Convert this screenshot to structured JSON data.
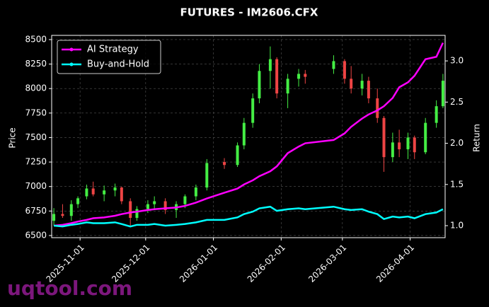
{
  "chart_data": {
    "type": "candlestick",
    "title": "FUTURES - IM2606.CFX",
    "ylabel": "Price",
    "y2label": "Return",
    "x": [
      "2025-10-20",
      "2025-10-24",
      "2025-10-28",
      "2025-10-31",
      "2025-11-04",
      "2025-11-07",
      "2025-11-12",
      "2025-11-17",
      "2025-11-20",
      "2025-11-24",
      "2025-11-27",
      "2025-12-02",
      "2025-12-05",
      "2025-12-10",
      "2025-12-15",
      "2025-12-19",
      "2025-12-24",
      "2025-12-29",
      "2026-01-06",
      "2026-01-12",
      "2026-01-15",
      "2026-01-19",
      "2026-01-22",
      "2026-01-27",
      "2026-01-30",
      "2026-02-04",
      "2026-02-09",
      "2026-02-12",
      "2026-02-25",
      "2026-03-02",
      "2026-03-05",
      "2026-03-10",
      "2026-03-13",
      "2026-03-17",
      "2026-03-20",
      "2026-03-24",
      "2026-03-27",
      "2026-03-31",
      "2026-04-03",
      "2026-04-08",
      "2026-04-13",
      "2026-04-16"
    ],
    "open": [
      6650,
      6720,
      6700,
      6820,
      6900,
      6980,
      6920,
      6960,
      6990,
      6850,
      6680,
      6770,
      6820,
      6850,
      6760,
      6820,
      6900,
      6990,
      7250,
      7220,
      7420,
      7650,
      7900,
      8180,
      8300,
      7950,
      8100,
      8150,
      8200,
      8280,
      8100,
      8000,
      8080,
      7900,
      7700,
      7300,
      7450,
      7380,
      7500,
      7350,
      7650,
      7820
    ],
    "high": [
      6780,
      6820,
      6860,
      6900,
      7020,
      7050,
      7010,
      7030,
      7000,
      6880,
      6800,
      6860,
      6900,
      6880,
      6850,
      6920,
      7020,
      7280,
      7290,
      7450,
      7700,
      7950,
      8250,
      8430,
      8320,
      8150,
      8200,
      8190,
      8340,
      8300,
      8230,
      8150,
      8120,
      8000,
      7720,
      7550,
      7580,
      7550,
      7520,
      7700,
      7880,
      8150
    ],
    "low": [
      6600,
      6680,
      6650,
      6780,
      6870,
      6900,
      6850,
      6900,
      6820,
      6600,
      6650,
      6730,
      6770,
      6720,
      6680,
      6780,
      6860,
      6960,
      7180,
      7200,
      7380,
      7600,
      7850,
      8000,
      7900,
      7800,
      8020,
      8050,
      8150,
      8050,
      7950,
      7930,
      7850,
      7650,
      7150,
      7250,
      7300,
      7280,
      7280,
      7330,
      7600,
      7800
    ],
    "close": [
      6720,
      6700,
      6820,
      6880,
      6980,
      6920,
      6960,
      6990,
      6850,
      6680,
      6770,
      6820,
      6850,
      6760,
      6820,
      6900,
      6990,
      7240,
      7220,
      7420,
      7650,
      7900,
      8180,
      8300,
      7950,
      8100,
      8150,
      8120,
      8280,
      8100,
      8000,
      8080,
      7900,
      7700,
      7300,
      7450,
      7380,
      7500,
      7350,
      7650,
      7820,
      8080
    ],
    "up_color": "#44ee44",
    "down_color": "#ee4444",
    "series": [
      {
        "name": "AI Strategy",
        "color": "#ff00ff",
        "axis": "y2",
        "values": [
          1.0,
          1.01,
          1.03,
          1.05,
          1.07,
          1.09,
          1.1,
          1.12,
          1.14,
          1.16,
          1.17,
          1.19,
          1.2,
          1.21,
          1.22,
          1.24,
          1.28,
          1.33,
          1.4,
          1.45,
          1.5,
          1.55,
          1.6,
          1.66,
          1.72,
          1.88,
          1.96,
          2.0,
          2.04,
          2.12,
          2.2,
          2.3,
          2.35,
          2.4,
          2.45,
          2.55,
          2.68,
          2.74,
          2.82,
          3.02,
          3.05,
          3.22
        ]
      },
      {
        "name": "Buy-and-Hold",
        "color": "#00ffff",
        "axis": "y2",
        "values": [
          1.0,
          0.99,
          1.01,
          1.02,
          1.04,
          1.03,
          1.03,
          1.04,
          1.02,
          0.99,
          1.01,
          1.01,
          1.02,
          1.0,
          1.01,
          1.02,
          1.04,
          1.07,
          1.07,
          1.1,
          1.14,
          1.17,
          1.21,
          1.23,
          1.18,
          1.2,
          1.21,
          1.2,
          1.23,
          1.2,
          1.19,
          1.2,
          1.17,
          1.14,
          1.08,
          1.11,
          1.1,
          1.11,
          1.09,
          1.14,
          1.16,
          1.2
        ]
      }
    ],
    "xlim": [
      "2025-10-19",
      "2026-04-17"
    ],
    "xticks": [
      "2025-11-01",
      "2025-12-01",
      "2026-01-01",
      "2026-02-01",
      "2026-03-01",
      "2026-04-01"
    ],
    "ylim": [
      6478,
      8543
    ],
    "yticks": [
      6500,
      6750,
      7000,
      7250,
      7500,
      7750,
      8000,
      8250,
      8500
    ],
    "y2lim": [
      0.854,
      3.31
    ],
    "y2ticks": [
      {
        "value": 1,
        "label": "1.0"
      },
      1.5,
      {
        "value": 2,
        "label": "2.0"
      },
      2.5,
      {
        "value": 3,
        "label": "3.0"
      }
    ],
    "grid": true,
    "legend": "upper left"
  },
  "watermark": "uqtool.com"
}
